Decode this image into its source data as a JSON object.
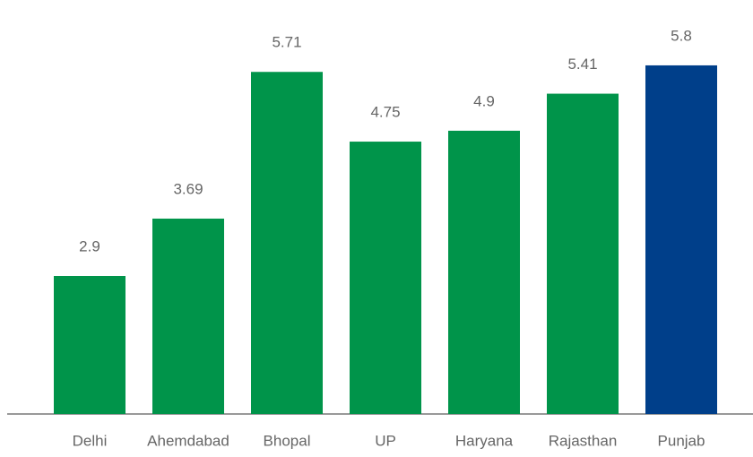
{
  "chart_data": {
    "type": "bar",
    "categories": [
      "Delhi",
      "Ahemdabad",
      "Bhopal",
      "UP",
      "Haryana",
      "Rajasthan",
      "Punjab"
    ],
    "values": [
      2.9,
      3.69,
      5.71,
      4.75,
      4.9,
      5.41,
      5.8
    ],
    "colors": [
      "#00944a",
      "#00944a",
      "#00944a",
      "#00944a",
      "#00944a",
      "#00944a",
      "#003f8a"
    ],
    "ylim": [
      1,
      6.7
    ]
  }
}
